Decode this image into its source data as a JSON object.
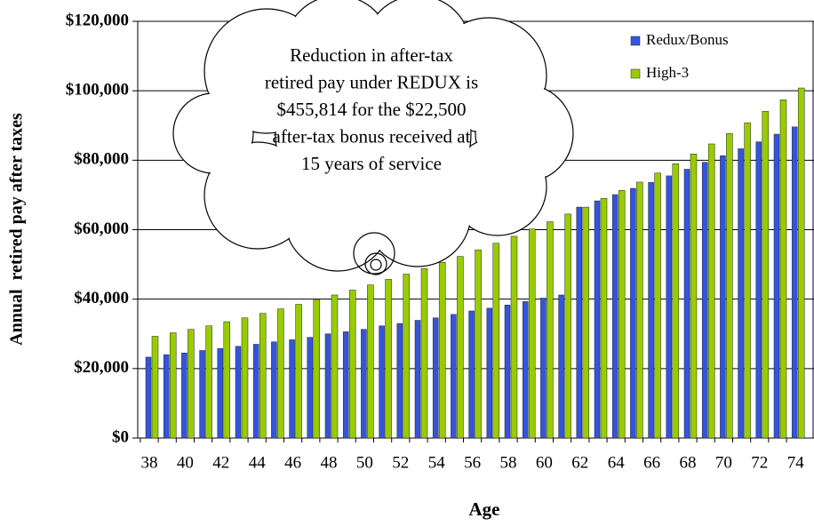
{
  "chart_data": {
    "type": "bar",
    "x_label": "Age",
    "y_label": "Annual  retired pay after taxes",
    "annotation_lines": [
      "Reduction in after-tax",
      "retired pay under REDUX is",
      "$455,814 for the $22,500",
      "after-tax bonus received at",
      "15 years of service"
    ],
    "categories": [
      "38",
      null,
      "40",
      null,
      "42",
      null,
      "44",
      null,
      "46",
      null,
      "48",
      null,
      "50",
      null,
      "52",
      null,
      "54",
      null,
      "56",
      null,
      "58",
      null,
      "60",
      null,
      "62",
      null,
      "64",
      null,
      "66",
      null,
      "68",
      null,
      "70",
      null,
      "72",
      null,
      "74"
    ],
    "series": [
      {
        "name": "Redux/Bonus",
        "color": "#3355dd",
        "values": [
          23300,
          24000,
          24500,
          25200,
          25800,
          26400,
          27000,
          27700,
          28300,
          29000,
          30000,
          30600,
          31300,
          32300,
          33000,
          33900,
          34600,
          35600,
          36600,
          37400,
          38300,
          39300,
          40300,
          41200,
          66500,
          68300,
          70100,
          71900,
          73600,
          75500,
          77400,
          79400,
          81300,
          83300,
          85300,
          87500,
          89600
        ]
      },
      {
        "name": "High-3",
        "color": "#99cc00",
        "values": [
          29300,
          30300,
          31300,
          32300,
          33500,
          34600,
          35900,
          37200,
          38500,
          39900,
          41200,
          42600,
          44100,
          45700,
          47200,
          48800,
          50600,
          52300,
          54200,
          56100,
          58100,
          60200,
          62300,
          64500,
          66500,
          69000,
          71300,
          73700,
          76300,
          79000,
          81800,
          84700,
          87700,
          90800,
          94100,
          97400,
          100800
        ]
      }
    ],
    "ylim": [
      0,
      120000
    ],
    "yticks": [
      {
        "value": 0,
        "label": "$0"
      },
      {
        "value": 20000,
        "label": "$20,000"
      },
      {
        "value": 40000,
        "label": "$40,000"
      },
      {
        "value": 60000,
        "label": "$60,000"
      },
      {
        "value": 80000,
        "label": "$80,000"
      },
      {
        "value": 100000,
        "label": "$100,000"
      },
      {
        "value": 120000,
        "label": "$120,000"
      }
    ],
    "grid": true,
    "legend": "top-right"
  }
}
